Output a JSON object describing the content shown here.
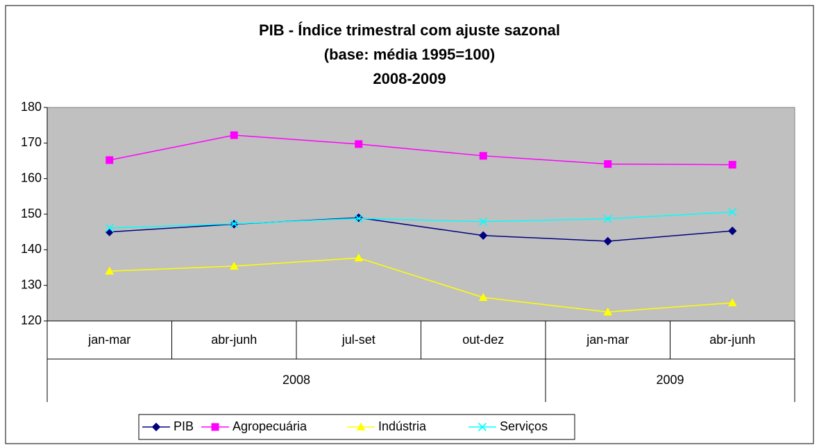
{
  "chart_data": {
    "type": "line",
    "title_lines": [
      "PIB - Índice trimestral com ajuste sazonal",
      "(base: média 1995=100)",
      "2008-2009"
    ],
    "category_groups": [
      {
        "label": "2008",
        "categories": [
          "jan-mar",
          "abr-junh",
          "jul-set",
          "out-dez"
        ]
      },
      {
        "label": "2009",
        "categories": [
          "jan-mar",
          "abr-junh"
        ]
      }
    ],
    "series": [
      {
        "name": "PIB",
        "color": "#000080",
        "marker": "diamond",
        "values": [
          145.0,
          147.2,
          149.0,
          144.0,
          142.4,
          145.3
        ]
      },
      {
        "name": "Agropecuária",
        "color": "#ff00ff",
        "marker": "square",
        "values": [
          165.2,
          172.2,
          169.7,
          166.4,
          164.1,
          163.9
        ]
      },
      {
        "name": "Indústria",
        "color": "#ffff00",
        "marker": "triangle",
        "values": [
          134.0,
          135.4,
          137.7,
          126.6,
          122.5,
          125.1
        ]
      },
      {
        "name": "Serviços",
        "color": "#00ffff",
        "marker": "x",
        "values": [
          146.1,
          147.3,
          148.8,
          147.9,
          148.7,
          150.6
        ]
      }
    ],
    "ylim": [
      120,
      180
    ],
    "yticks": [
      120,
      130,
      140,
      150,
      160,
      170,
      180
    ],
    "grid": false,
    "plot_background": "#c0c0c0",
    "legend": "bottom"
  }
}
